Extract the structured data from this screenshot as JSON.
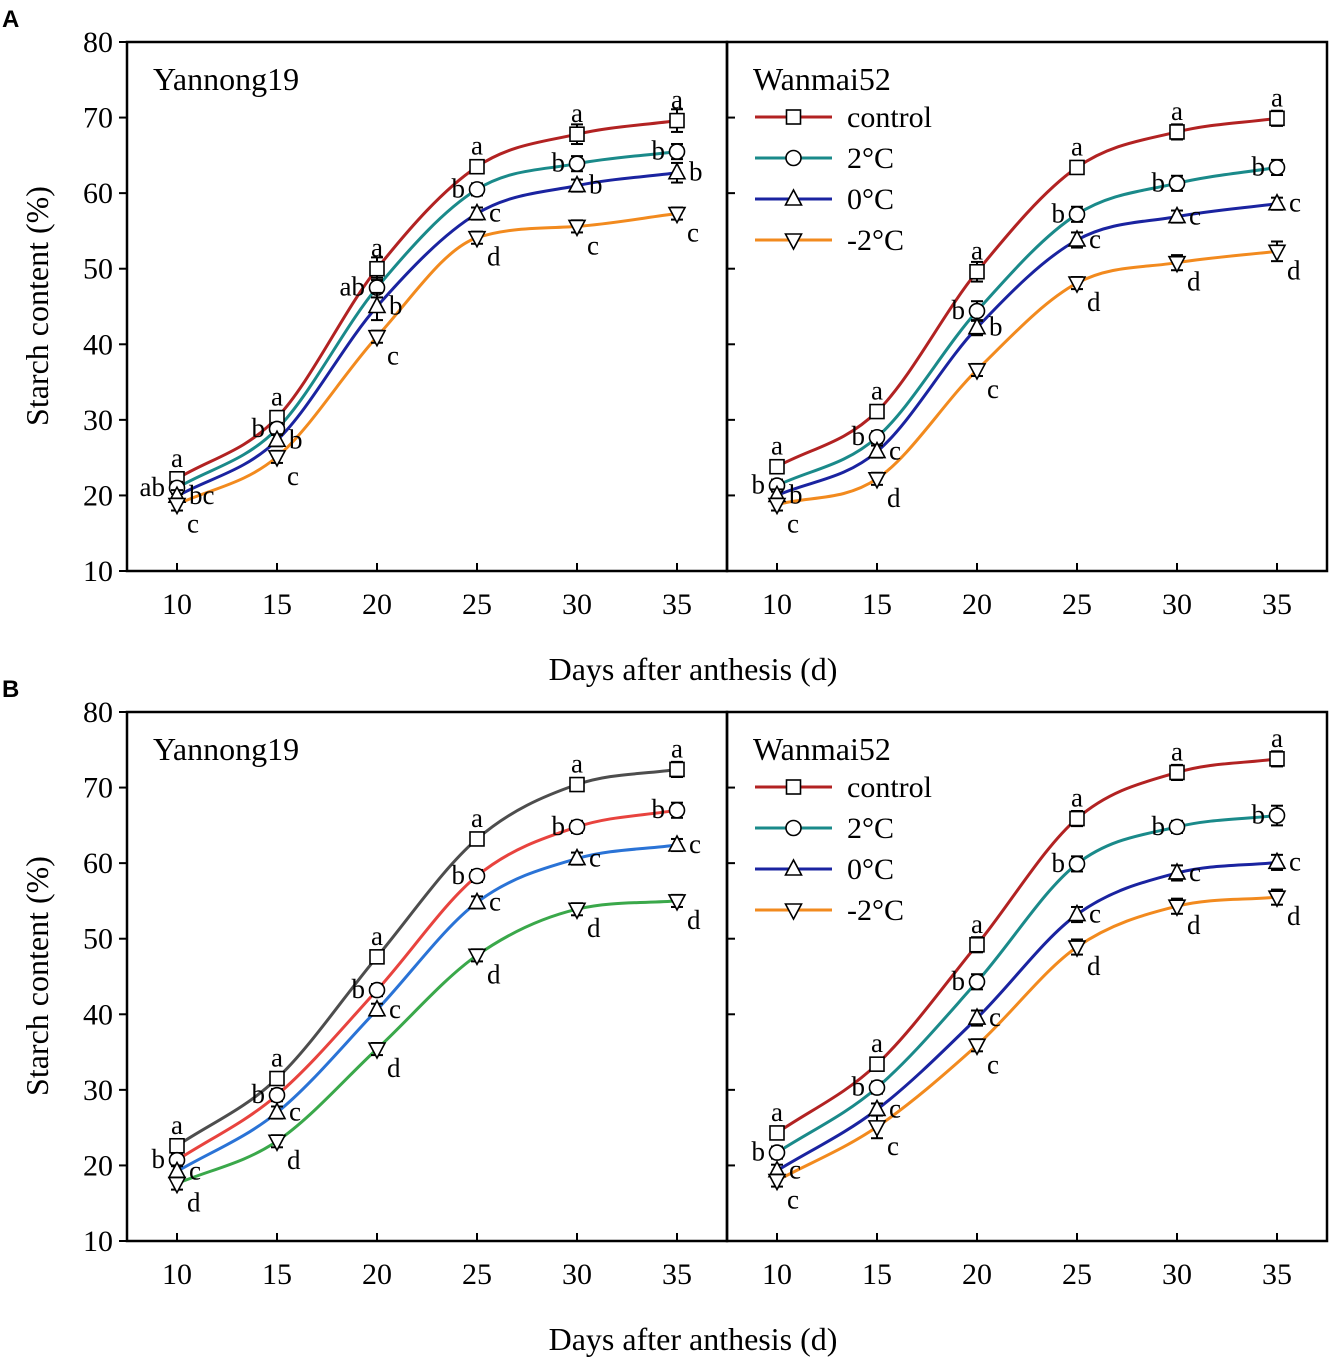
{
  "figure": {
    "x_axis_title": "Days after anthesis (d)",
    "y_axis_title": "Starch content (%)"
  },
  "legend_entries": [
    "control",
    "2°C",
    "0°C",
    "-2°C"
  ],
  "chart_data": [
    {
      "type": "line",
      "panel": "A",
      "title": "Yannong19",
      "xlabel": "Days after anthesis (d)",
      "ylabel": "Starch content (%)",
      "xlim": [
        7.5,
        37.5
      ],
      "ylim": [
        10,
        80
      ],
      "xticks": [
        10,
        15,
        20,
        25,
        30,
        35
      ],
      "yticks": [
        10,
        20,
        30,
        40,
        50,
        60,
        70,
        80
      ],
      "x": [
        10,
        15,
        20,
        25,
        30,
        35
      ],
      "series": [
        {
          "name": "control",
          "marker": "square",
          "color": "#b22222",
          "values": [
            22.2,
            30.3,
            50.0,
            63.5,
            67.8,
            69.6
          ],
          "errors": [
            0.8,
            0.8,
            1.5,
            0.8,
            1.3,
            1.5
          ],
          "letters": [
            "a",
            "a",
            "a",
            "a",
            "a",
            "a"
          ]
        },
        {
          "name": "2°C",
          "marker": "circle",
          "color": "#1a8a8a",
          "values": [
            21.0,
            28.8,
            47.5,
            60.5,
            63.9,
            65.5
          ],
          "errors": [
            0.8,
            0.8,
            1.3,
            0.8,
            1.0,
            1.0
          ],
          "letters": [
            "ab",
            "b",
            "ab",
            "b",
            "b",
            "b"
          ]
        },
        {
          "name": "0°C",
          "marker": "triangle-up",
          "color": "#1a23a0",
          "values": [
            19.9,
            27.3,
            45.0,
            57.3,
            61.0,
            62.7
          ],
          "errors": [
            0.8,
            0.8,
            1.8,
            0.8,
            0.8,
            1.3
          ],
          "letters": [
            "bc",
            "b",
            "b",
            "c",
            "b",
            "b"
          ]
        },
        {
          "name": "-2°C",
          "marker": "triangle-down",
          "color": "#f28a1e",
          "values": [
            18.8,
            25.1,
            41.0,
            54.1,
            55.6,
            57.3
          ],
          "errors": [
            0.8,
            0.8,
            0.8,
            0.8,
            0.8,
            0.8
          ],
          "letters": [
            "c",
            "c",
            "c",
            "d",
            "c",
            "c"
          ]
        }
      ]
    },
    {
      "type": "line",
      "panel": "A",
      "title": "Wanmai52",
      "xlabel": "Days after anthesis (d)",
      "ylabel": "Starch content (%)",
      "xlim": [
        7.5,
        37.5
      ],
      "ylim": [
        10,
        80
      ],
      "xticks": [
        10,
        15,
        20,
        25,
        30,
        35
      ],
      "yticks": [
        10,
        20,
        30,
        40,
        50,
        60,
        70,
        80
      ],
      "x": [
        10,
        15,
        20,
        25,
        30,
        35
      ],
      "series": [
        {
          "name": "control",
          "marker": "square",
          "color": "#b22222",
          "values": [
            23.8,
            31.1,
            49.6,
            63.4,
            68.1,
            69.9
          ],
          "errors": [
            0.8,
            0.8,
            1.3,
            0.8,
            1.0,
            1.0
          ],
          "letters": [
            "a",
            "a",
            "a",
            "a",
            "a",
            "a"
          ]
        },
        {
          "name": "2°C",
          "marker": "circle",
          "color": "#1a8a8a",
          "values": [
            21.3,
            27.7,
            44.4,
            57.2,
            61.3,
            63.4
          ],
          "errors": [
            0.8,
            0.8,
            1.3,
            1.0,
            1.0,
            1.0
          ],
          "letters": [
            "b",
            "b",
            "b",
            "b",
            "b",
            "b"
          ]
        },
        {
          "name": "0°C",
          "marker": "triangle-up",
          "color": "#1a23a0",
          "values": [
            20.0,
            25.8,
            42.2,
            53.8,
            56.9,
            58.6
          ],
          "errors": [
            0.8,
            0.8,
            1.0,
            1.0,
            0.8,
            0.8
          ],
          "letters": [
            "b",
            "c",
            "b",
            "c",
            "c",
            "c"
          ]
        },
        {
          "name": "-2°C",
          "marker": "triangle-down",
          "color": "#f28a1e",
          "values": [
            18.8,
            22.2,
            36.6,
            48.1,
            50.8,
            52.3
          ],
          "errors": [
            0.8,
            0.8,
            0.8,
            0.8,
            1.0,
            1.3
          ],
          "letters": [
            "c",
            "d",
            "c",
            "d",
            "d",
            "d"
          ]
        }
      ]
    },
    {
      "type": "line",
      "panel": "B",
      "title": "Yannong19",
      "xlabel": "Days after anthesis (d)",
      "ylabel": "Starch content (%)",
      "xlim": [
        7.5,
        37.5
      ],
      "ylim": [
        10,
        80
      ],
      "xticks": [
        10,
        15,
        20,
        25,
        30,
        35
      ],
      "yticks": [
        10,
        20,
        30,
        40,
        50,
        60,
        70,
        80
      ],
      "x": [
        10,
        15,
        20,
        25,
        30,
        35
      ],
      "series": [
        {
          "name": "control",
          "marker": "square",
          "color": "#4d4d4d",
          "values": [
            22.6,
            31.5,
            47.6,
            63.2,
            70.4,
            72.4
          ],
          "errors": [
            0.8,
            0.8,
            0.8,
            0.8,
            0.8,
            1.0
          ],
          "letters": [
            "a",
            "a",
            "a",
            "a",
            "a",
            "a"
          ]
        },
        {
          "name": "2°C",
          "marker": "circle",
          "color": "#e8433e",
          "values": [
            20.7,
            29.3,
            43.2,
            58.3,
            64.8,
            67.0
          ],
          "errors": [
            0.8,
            0.8,
            0.8,
            0.8,
            0.8,
            1.0
          ],
          "letters": [
            "b",
            "b",
            "b",
            "b",
            "b",
            "b"
          ]
        },
        {
          "name": "0°C",
          "marker": "triangle-up",
          "color": "#2a73d6",
          "values": [
            19.2,
            27.0,
            40.6,
            54.8,
            60.6,
            62.4
          ],
          "errors": [
            0.8,
            0.8,
            0.8,
            0.8,
            0.8,
            0.8
          ],
          "letters": [
            "c",
            "c",
            "c",
            "c",
            "c",
            "c"
          ]
        },
        {
          "name": "-2°C",
          "marker": "triangle-down",
          "color": "#3aa84a",
          "values": [
            17.6,
            23.2,
            35.4,
            47.8,
            53.9,
            55.0
          ],
          "errors": [
            0.8,
            0.8,
            0.8,
            0.8,
            0.8,
            0.8
          ],
          "letters": [
            "d",
            "d",
            "d",
            "d",
            "d",
            "d"
          ]
        }
      ]
    },
    {
      "type": "line",
      "panel": "B",
      "title": "Wanmai52",
      "xlabel": "Days after anthesis (d)",
      "ylabel": "Starch content (%)",
      "xlim": [
        7.5,
        37.5
      ],
      "ylim": [
        10,
        80
      ],
      "xticks": [
        10,
        15,
        20,
        25,
        30,
        35
      ],
      "yticks": [
        10,
        20,
        30,
        40,
        50,
        60,
        70,
        80
      ],
      "x": [
        10,
        15,
        20,
        25,
        30,
        35
      ],
      "series": [
        {
          "name": "control",
          "marker": "square",
          "color": "#b22222",
          "values": [
            24.3,
            33.4,
            49.2,
            65.9,
            72.0,
            73.8
          ],
          "errors": [
            0.8,
            0.8,
            1.0,
            1.0,
            1.0,
            1.0
          ],
          "letters": [
            "a",
            "a",
            "a",
            "a",
            "a",
            "a"
          ]
        },
        {
          "name": "2°C",
          "marker": "circle",
          "color": "#1a8a8a",
          "values": [
            21.7,
            30.3,
            44.3,
            59.9,
            64.8,
            66.3
          ],
          "errors": [
            0.8,
            0.8,
            1.0,
            1.0,
            0.8,
            1.3
          ],
          "letters": [
            "b",
            "b",
            "b",
            "b",
            "b",
            "b"
          ]
        },
        {
          "name": "0°C",
          "marker": "triangle-up",
          "color": "#1a23a0",
          "values": [
            19.3,
            27.4,
            39.5,
            53.2,
            58.7,
            60.1
          ],
          "errors": [
            0.8,
            0.8,
            1.0,
            1.0,
            1.0,
            1.0
          ],
          "letters": [
            "c",
            "c",
            "c",
            "c",
            "c",
            "c"
          ]
        },
        {
          "name": "-2°C",
          "marker": "triangle-down",
          "color": "#f28a1e",
          "values": [
            18.0,
            25.1,
            35.9,
            48.9,
            54.3,
            55.5
          ],
          "errors": [
            0.8,
            1.5,
            0.8,
            1.0,
            1.0,
            1.0
          ],
          "letters": [
            "c",
            "c",
            "c",
            "d",
            "d",
            "d"
          ]
        }
      ]
    }
  ]
}
